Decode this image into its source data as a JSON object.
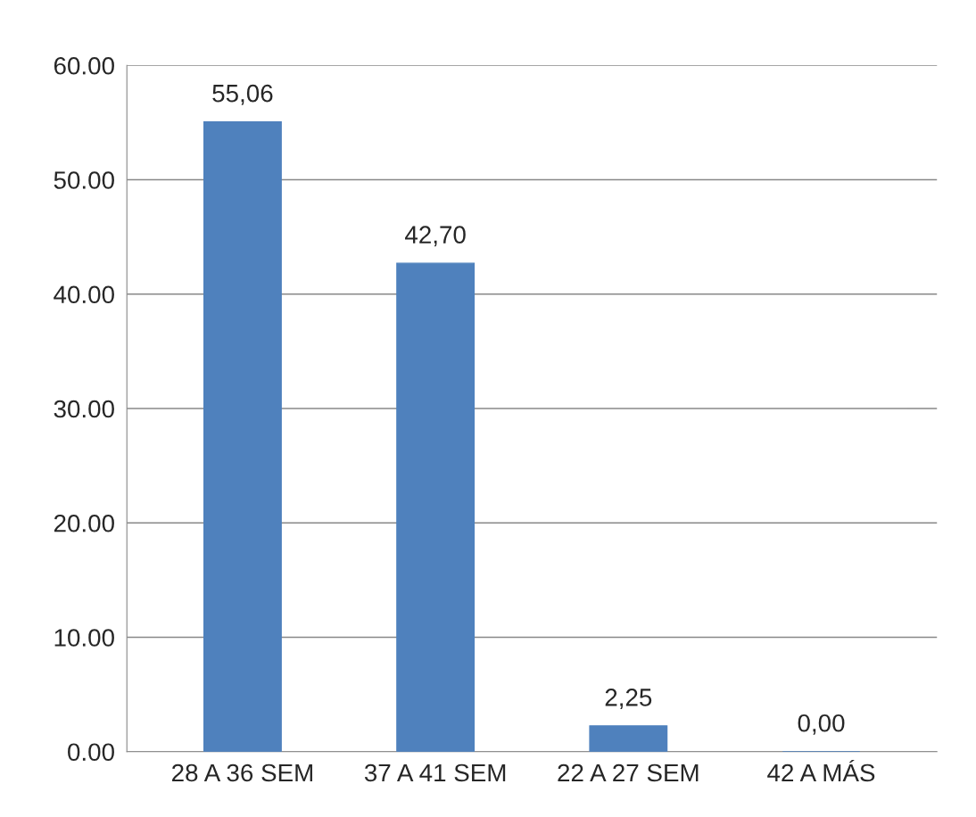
{
  "chart_data": {
    "type": "bar",
    "categories": [
      "28 A 36 SEM",
      "37 A 41 SEM",
      "22 A 27 SEM",
      "42 A MÁS"
    ],
    "values": [
      55.06,
      42.7,
      2.25,
      0.0
    ],
    "value_labels": [
      "55,06",
      "42,70",
      "2,25",
      "0,00"
    ],
    "color": "#4f81bd",
    "ylim": [
      0,
      60
    ],
    "yticks": [
      {
        "value": 0,
        "label": "0.00"
      },
      {
        "value": 10,
        "label": "10.00"
      },
      {
        "value": 20,
        "label": "20.00"
      },
      {
        "value": 30,
        "label": "30.00"
      },
      {
        "value": 40,
        "label": "40.00"
      },
      {
        "value": 50,
        "label": "50.00"
      },
      {
        "value": 60,
        "label": "60.00"
      }
    ],
    "grid": "y",
    "legend": false
  }
}
